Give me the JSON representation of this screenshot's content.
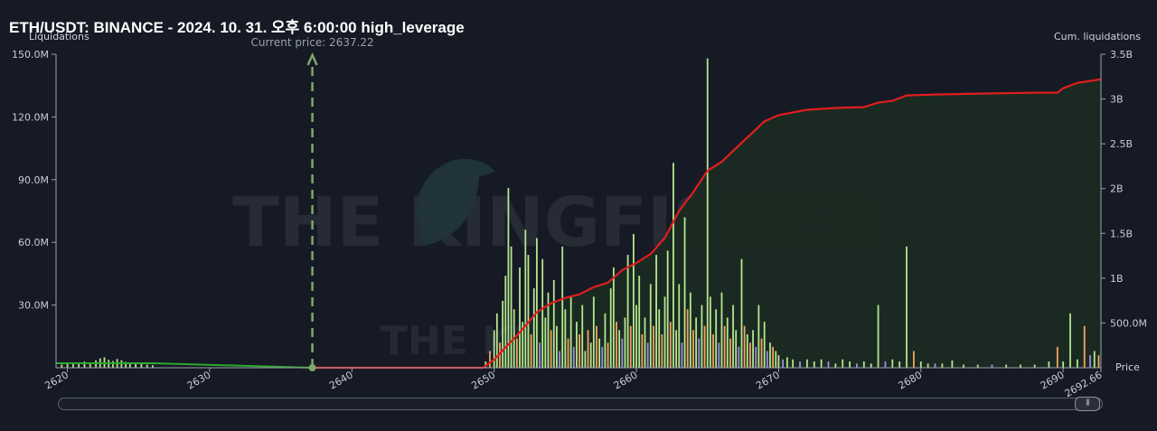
{
  "chart_data": {
    "type": "bar",
    "title": "ETH/USDT: BINANCE - 2024. 10. 31. 오후 6:00:00 high_leverage",
    "y_left_label": "Liquidations",
    "y_right_label": "Cum. liquidations",
    "x_axis_label": "Price",
    "current_price_label": "Current price: 2637.22",
    "current_price": 2637.22,
    "xlim": [
      2619.2,
      2692.66
    ],
    "ylim_left": [
      0,
      150000000
    ],
    "ylim_right": [
      0,
      3500000000
    ],
    "x_ticks": [
      {
        "value": 2620,
        "label": "2620"
      },
      {
        "value": 2630,
        "label": "2630"
      },
      {
        "value": 2640,
        "label": "2640"
      },
      {
        "value": 2650,
        "label": "2650"
      },
      {
        "value": 2660,
        "label": "2660"
      },
      {
        "value": 2670,
        "label": "2670"
      },
      {
        "value": 2680,
        "label": "2680"
      },
      {
        "value": 2690,
        "label": "2690"
      },
      {
        "value": 2692.66,
        "label": "2692.66"
      }
    ],
    "y_left_ticks": [
      {
        "value": 30000000,
        "label": "30.0M"
      },
      {
        "value": 60000000,
        "label": "60.0M"
      },
      {
        "value": 90000000,
        "label": "90.0M"
      },
      {
        "value": 120000000,
        "label": "120.0M"
      },
      {
        "value": 150000000,
        "label": "150.0M"
      }
    ],
    "y_right_ticks": [
      {
        "value": 500000000,
        "label": "500.0M"
      },
      {
        "value": 1000000000,
        "label": "1B"
      },
      {
        "value": 1500000000,
        "label": "1.5B"
      },
      {
        "value": 2000000000,
        "label": "2B"
      },
      {
        "value": 2500000000,
        "label": "2.5B"
      },
      {
        "value": 3000000000,
        "label": "3B"
      },
      {
        "value": 3500000000,
        "label": "3.5B"
      }
    ],
    "watermark_text": "THE KINGFISHER",
    "watermark_suffix": ".io",
    "colors": {
      "background": "#161a25",
      "long_bars": "#b5e58e",
      "short_bars": "#f4a261",
      "other_bars": "#9b8fe0",
      "cum_short_line": "#e01e1e",
      "cum_long_line": "#2ea82e",
      "cum_fill": "#1a2b22",
      "current_price_line": "#7ea86a"
    },
    "bars": [
      {
        "x": 2619.6,
        "y": 1.5,
        "c": "L"
      },
      {
        "x": 2620.0,
        "y": 2.0,
        "c": "L"
      },
      {
        "x": 2620.4,
        "y": 2.2,
        "c": "L"
      },
      {
        "x": 2620.8,
        "y": 2.4,
        "c": "L"
      },
      {
        "x": 2621.2,
        "y": 3.0,
        "c": "L"
      },
      {
        "x": 2621.6,
        "y": 2.5,
        "c": "L"
      },
      {
        "x": 2622.0,
        "y": 3.5,
        "c": "L"
      },
      {
        "x": 2622.3,
        "y": 4.5,
        "c": "L"
      },
      {
        "x": 2622.6,
        "y": 5.0,
        "c": "L"
      },
      {
        "x": 2622.9,
        "y": 3.8,
        "c": "L"
      },
      {
        "x": 2623.2,
        "y": 3.2,
        "c": "L"
      },
      {
        "x": 2623.5,
        "y": 4.2,
        "c": "L"
      },
      {
        "x": 2623.8,
        "y": 3.6,
        "c": "L"
      },
      {
        "x": 2624.1,
        "y": 2.8,
        "c": "L"
      },
      {
        "x": 2624.4,
        "y": 2.6,
        "c": "L"
      },
      {
        "x": 2624.8,
        "y": 2.0,
        "c": "L"
      },
      {
        "x": 2625.2,
        "y": 1.8,
        "c": "L"
      },
      {
        "x": 2625.6,
        "y": 1.5,
        "c": "L"
      },
      {
        "x": 2626.0,
        "y": 1.2,
        "c": "L"
      },
      {
        "x": 2649.4,
        "y": 3.0,
        "c": "L"
      },
      {
        "x": 2649.7,
        "y": 8.0,
        "c": "S"
      },
      {
        "x": 2650.0,
        "y": 18.0,
        "c": "L"
      },
      {
        "x": 2650.2,
        "y": 26.0,
        "c": "L"
      },
      {
        "x": 2650.4,
        "y": 12.0,
        "c": "S"
      },
      {
        "x": 2650.6,
        "y": 32.0,
        "c": "L"
      },
      {
        "x": 2650.8,
        "y": 44.0,
        "c": "L"
      },
      {
        "x": 2651.0,
        "y": 86.0,
        "c": "L"
      },
      {
        "x": 2651.2,
        "y": 58.0,
        "c": "L"
      },
      {
        "x": 2651.4,
        "y": 28.0,
        "c": "L"
      },
      {
        "x": 2651.6,
        "y": 14.0,
        "c": "S"
      },
      {
        "x": 2651.8,
        "y": 48.0,
        "c": "L"
      },
      {
        "x": 2652.0,
        "y": 22.0,
        "c": "L"
      },
      {
        "x": 2652.2,
        "y": 66.0,
        "c": "L"
      },
      {
        "x": 2652.4,
        "y": 54.0,
        "c": "L"
      },
      {
        "x": 2652.6,
        "y": 16.0,
        "c": "S"
      },
      {
        "x": 2652.8,
        "y": 38.0,
        "c": "L"
      },
      {
        "x": 2653.0,
        "y": 62.0,
        "c": "L"
      },
      {
        "x": 2653.2,
        "y": 12.0,
        "c": "O"
      },
      {
        "x": 2653.4,
        "y": 52.0,
        "c": "L"
      },
      {
        "x": 2653.6,
        "y": 24.0,
        "c": "L"
      },
      {
        "x": 2653.8,
        "y": 36.0,
        "c": "L"
      },
      {
        "x": 2654.0,
        "y": 18.0,
        "c": "S"
      },
      {
        "x": 2654.2,
        "y": 42.0,
        "c": "L"
      },
      {
        "x": 2654.4,
        "y": 20.0,
        "c": "L"
      },
      {
        "x": 2654.6,
        "y": 8.0,
        "c": "O"
      },
      {
        "x": 2654.8,
        "y": 58.0,
        "c": "L"
      },
      {
        "x": 2655.0,
        "y": 28.0,
        "c": "L"
      },
      {
        "x": 2655.2,
        "y": 14.0,
        "c": "S"
      },
      {
        "x": 2655.4,
        "y": 34.0,
        "c": "L"
      },
      {
        "x": 2655.6,
        "y": 10.0,
        "c": "O"
      },
      {
        "x": 2655.8,
        "y": 22.0,
        "c": "L"
      },
      {
        "x": 2656.0,
        "y": 16.0,
        "c": "S"
      },
      {
        "x": 2656.2,
        "y": 30.0,
        "c": "L"
      },
      {
        "x": 2656.4,
        "y": 8.0,
        "c": "L"
      },
      {
        "x": 2656.6,
        "y": 18.0,
        "c": "S"
      },
      {
        "x": 2656.8,
        "y": 12.0,
        "c": "L"
      },
      {
        "x": 2657.0,
        "y": 34.0,
        "c": "L"
      },
      {
        "x": 2657.2,
        "y": 20.0,
        "c": "S"
      },
      {
        "x": 2657.4,
        "y": 14.0,
        "c": "L"
      },
      {
        "x": 2657.6,
        "y": 10.0,
        "c": "O"
      },
      {
        "x": 2657.8,
        "y": 26.0,
        "c": "L"
      },
      {
        "x": 2658.0,
        "y": 12.0,
        "c": "S"
      },
      {
        "x": 2658.2,
        "y": 38.0,
        "c": "L"
      },
      {
        "x": 2658.4,
        "y": 48.0,
        "c": "L"
      },
      {
        "x": 2658.6,
        "y": 22.0,
        "c": "S"
      },
      {
        "x": 2658.8,
        "y": 18.0,
        "c": "L"
      },
      {
        "x": 2659.0,
        "y": 14.0,
        "c": "O"
      },
      {
        "x": 2659.2,
        "y": 24.0,
        "c": "L"
      },
      {
        "x": 2659.4,
        "y": 54.0,
        "c": "L"
      },
      {
        "x": 2659.6,
        "y": 20.0,
        "c": "S"
      },
      {
        "x": 2659.8,
        "y": 64.0,
        "c": "L"
      },
      {
        "x": 2660.0,
        "y": 30.0,
        "c": "L"
      },
      {
        "x": 2660.2,
        "y": 44.0,
        "c": "L"
      },
      {
        "x": 2660.4,
        "y": 16.0,
        "c": "S"
      },
      {
        "x": 2660.6,
        "y": 24.0,
        "c": "L"
      },
      {
        "x": 2660.8,
        "y": 12.0,
        "c": "O"
      },
      {
        "x": 2661.0,
        "y": 40.0,
        "c": "L"
      },
      {
        "x": 2661.2,
        "y": 20.0,
        "c": "S"
      },
      {
        "x": 2661.4,
        "y": 54.0,
        "c": "L"
      },
      {
        "x": 2661.6,
        "y": 28.0,
        "c": "L"
      },
      {
        "x": 2661.8,
        "y": 16.0,
        "c": "S"
      },
      {
        "x": 2662.0,
        "y": 34.0,
        "c": "L"
      },
      {
        "x": 2662.2,
        "y": 56.0,
        "c": "L"
      },
      {
        "x": 2662.4,
        "y": 22.0,
        "c": "S"
      },
      {
        "x": 2662.6,
        "y": 98.0,
        "c": "L"
      },
      {
        "x": 2662.8,
        "y": 18.0,
        "c": "L"
      },
      {
        "x": 2663.0,
        "y": 40.0,
        "c": "L"
      },
      {
        "x": 2663.2,
        "y": 12.0,
        "c": "O"
      },
      {
        "x": 2663.4,
        "y": 72.0,
        "c": "L"
      },
      {
        "x": 2663.6,
        "y": 28.0,
        "c": "S"
      },
      {
        "x": 2663.8,
        "y": 36.0,
        "c": "L"
      },
      {
        "x": 2664.0,
        "y": 18.0,
        "c": "S"
      },
      {
        "x": 2664.2,
        "y": 24.0,
        "c": "L"
      },
      {
        "x": 2664.4,
        "y": 14.0,
        "c": "O"
      },
      {
        "x": 2664.6,
        "y": 30.0,
        "c": "L"
      },
      {
        "x": 2664.8,
        "y": 20.0,
        "c": "S"
      },
      {
        "x": 2665.0,
        "y": 148.0,
        "c": "L"
      },
      {
        "x": 2665.2,
        "y": 34.0,
        "c": "L"
      },
      {
        "x": 2665.4,
        "y": 16.0,
        "c": "S"
      },
      {
        "x": 2665.6,
        "y": 28.0,
        "c": "L"
      },
      {
        "x": 2665.8,
        "y": 12.0,
        "c": "O"
      },
      {
        "x": 2666.0,
        "y": 36.0,
        "c": "L"
      },
      {
        "x": 2666.2,
        "y": 20.0,
        "c": "S"
      },
      {
        "x": 2666.4,
        "y": 24.0,
        "c": "L"
      },
      {
        "x": 2666.6,
        "y": 14.0,
        "c": "S"
      },
      {
        "x": 2666.8,
        "y": 30.0,
        "c": "L"
      },
      {
        "x": 2667.0,
        "y": 18.0,
        "c": "L"
      },
      {
        "x": 2667.2,
        "y": 10.0,
        "c": "O"
      },
      {
        "x": 2667.4,
        "y": 52.0,
        "c": "L"
      },
      {
        "x": 2667.6,
        "y": 20.0,
        "c": "S"
      },
      {
        "x": 2667.8,
        "y": 16.0,
        "c": "L"
      },
      {
        "x": 2668.0,
        "y": 12.0,
        "c": "S"
      },
      {
        "x": 2668.2,
        "y": 18.0,
        "c": "L"
      },
      {
        "x": 2668.4,
        "y": 10.0,
        "c": "O"
      },
      {
        "x": 2668.6,
        "y": 30.0,
        "c": "L"
      },
      {
        "x": 2668.8,
        "y": 14.0,
        "c": "S"
      },
      {
        "x": 2669.0,
        "y": 22.0,
        "c": "L"
      },
      {
        "x": 2669.2,
        "y": 8.0,
        "c": "O"
      },
      {
        "x": 2669.4,
        "y": 12.0,
        "c": "L"
      },
      {
        "x": 2669.6,
        "y": 10.0,
        "c": "S"
      },
      {
        "x": 2669.8,
        "y": 8.0,
        "c": "L"
      },
      {
        "x": 2670.0,
        "y": 6.0,
        "c": "L"
      },
      {
        "x": 2670.3,
        "y": 4.0,
        "c": "O"
      },
      {
        "x": 2670.6,
        "y": 5.0,
        "c": "L"
      },
      {
        "x": 2671.0,
        "y": 4.0,
        "c": "L"
      },
      {
        "x": 2671.5,
        "y": 3.0,
        "c": "O"
      },
      {
        "x": 2672.0,
        "y": 4.0,
        "c": "L"
      },
      {
        "x": 2672.5,
        "y": 3.0,
        "c": "L"
      },
      {
        "x": 2673.0,
        "y": 4.0,
        "c": "L"
      },
      {
        "x": 2673.5,
        "y": 3.0,
        "c": "O"
      },
      {
        "x": 2674.0,
        "y": 2.0,
        "c": "L"
      },
      {
        "x": 2674.5,
        "y": 4.0,
        "c": "L"
      },
      {
        "x": 2675.0,
        "y": 3.0,
        "c": "L"
      },
      {
        "x": 2675.5,
        "y": 2.0,
        "c": "O"
      },
      {
        "x": 2676.0,
        "y": 3.0,
        "c": "L"
      },
      {
        "x": 2676.5,
        "y": 2.0,
        "c": "L"
      },
      {
        "x": 2677.0,
        "y": 30.0,
        "c": "L"
      },
      {
        "x": 2677.5,
        "y": 3.0,
        "c": "O"
      },
      {
        "x": 2678.0,
        "y": 4.0,
        "c": "L"
      },
      {
        "x": 2678.5,
        "y": 3.0,
        "c": "L"
      },
      {
        "x": 2679.0,
        "y": 58.0,
        "c": "L"
      },
      {
        "x": 2679.5,
        "y": 8.0,
        "c": "S"
      },
      {
        "x": 2680.0,
        "y": 3.0,
        "c": "L"
      },
      {
        "x": 2680.5,
        "y": 2.0,
        "c": "L"
      },
      {
        "x": 2681.0,
        "y": 2.0,
        "c": "O"
      },
      {
        "x": 2681.5,
        "y": 2.0,
        "c": "L"
      },
      {
        "x": 2682.2,
        "y": 3.5,
        "c": "L"
      },
      {
        "x": 2683.0,
        "y": 1.5,
        "c": "L"
      },
      {
        "x": 2684.0,
        "y": 1.5,
        "c": "L"
      },
      {
        "x": 2685.0,
        "y": 1.5,
        "c": "O"
      },
      {
        "x": 2686.0,
        "y": 1.5,
        "c": "L"
      },
      {
        "x": 2687.0,
        "y": 1.5,
        "c": "L"
      },
      {
        "x": 2688.0,
        "y": 1.5,
        "c": "L"
      },
      {
        "x": 2689.0,
        "y": 3.0,
        "c": "L"
      },
      {
        "x": 2689.6,
        "y": 10.0,
        "c": "S"
      },
      {
        "x": 2690.0,
        "y": 3.0,
        "c": "L"
      },
      {
        "x": 2690.5,
        "y": 26.0,
        "c": "L"
      },
      {
        "x": 2691.0,
        "y": 4.0,
        "c": "L"
      },
      {
        "x": 2691.5,
        "y": 20.0,
        "c": "S"
      },
      {
        "x": 2691.9,
        "y": 6.0,
        "c": "O"
      },
      {
        "x": 2692.2,
        "y": 8.0,
        "c": "L"
      },
      {
        "x": 2692.5,
        "y": 6.0,
        "c": "S"
      }
    ],
    "cum_long": [
      [
        2619.2,
        0.05
      ],
      [
        2626.0,
        0.05
      ],
      [
        2637.22,
        0.0
      ]
    ],
    "cum_short": [
      [
        2637.22,
        0.0
      ],
      [
        2649.2,
        0.0
      ],
      [
        2650.0,
        0.09
      ],
      [
        2651.0,
        0.26
      ],
      [
        2652.0,
        0.43
      ],
      [
        2653.0,
        0.62
      ],
      [
        2654.0,
        0.72
      ],
      [
        2655.0,
        0.78
      ],
      [
        2656.0,
        0.82
      ],
      [
        2657.0,
        0.9
      ],
      [
        2658.0,
        0.95
      ],
      [
        2659.0,
        1.09
      ],
      [
        2660.0,
        1.17
      ],
      [
        2661.0,
        1.27
      ],
      [
        2662.0,
        1.45
      ],
      [
        2663.0,
        1.75
      ],
      [
        2664.0,
        1.96
      ],
      [
        2665.0,
        2.2
      ],
      [
        2666.0,
        2.3
      ],
      [
        2667.0,
        2.45
      ],
      [
        2668.0,
        2.6
      ],
      [
        2669.0,
        2.75
      ],
      [
        2670.0,
        2.82
      ],
      [
        2671.0,
        2.85
      ],
      [
        2672.0,
        2.88
      ],
      [
        2674.0,
        2.9
      ],
      [
        2676.0,
        2.91
      ],
      [
        2677.0,
        2.96
      ],
      [
        2678.0,
        2.98
      ],
      [
        2679.0,
        3.04
      ],
      [
        2681.0,
        3.05
      ],
      [
        2684.0,
        3.06
      ],
      [
        2688.0,
        3.07
      ],
      [
        2689.6,
        3.07
      ],
      [
        2690.0,
        3.12
      ],
      [
        2691.0,
        3.18
      ],
      [
        2692.66,
        3.22
      ]
    ]
  },
  "scrollbar": {
    "grip": "|||"
  }
}
